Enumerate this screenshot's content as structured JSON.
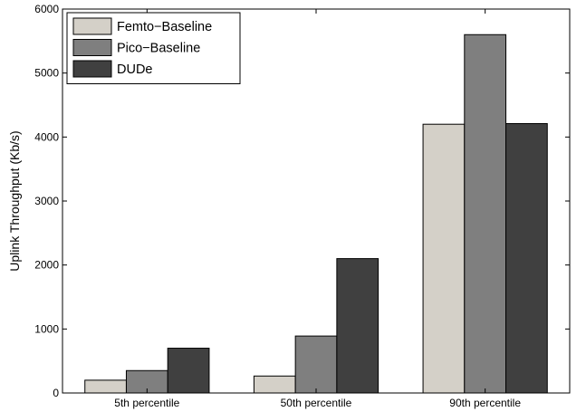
{
  "chart_data": {
    "type": "bar",
    "title": "",
    "xlabel": "",
    "ylabel": "Uplink Throughput (Kb/s)",
    "categories": [
      "5th percentile",
      "50th percentile",
      "90th percentile"
    ],
    "series": [
      {
        "name": "Femto−Baseline",
        "color": "#d4d0c8",
        "values": [
          200,
          265,
          4200
        ]
      },
      {
        "name": "Pico−Baseline",
        "color": "#7f7f7f",
        "values": [
          350,
          890,
          5600
        ]
      },
      {
        "name": "DUDe",
        "color": "#404040",
        "values": [
          700,
          2100,
          4210
        ]
      }
    ],
    "ylim": [
      0,
      6000
    ],
    "yticks": [
      0,
      1000,
      2000,
      3000,
      4000,
      5000,
      6000
    ],
    "grid": false,
    "legend_position": "top-left"
  }
}
